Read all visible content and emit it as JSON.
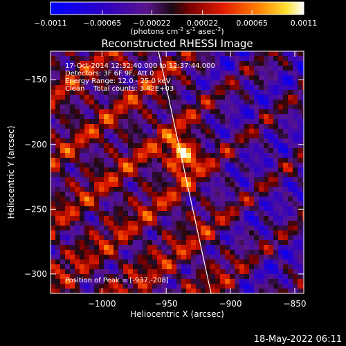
{
  "colorbar": {
    "ticks": [
      "-0.0011",
      "-0.00065",
      "-0.00022",
      "0.00022",
      "0.00065",
      "0.0011"
    ],
    "units_prefix": "(photons cm",
    "units_sup1": "-2",
    "units_mid": " s",
    "units_sup2": "-1",
    "units_mid2": " asec",
    "units_sup3": "-2",
    "units_suffix": ")"
  },
  "timestamp": "18-May-2022 06:11",
  "chart_data": {
    "type": "heatmap",
    "title": "Reconstructed RHESSI Image",
    "xlabel": "Heliocentric X (arcsec)",
    "ylabel": "Heliocentric Y (arcsec)",
    "xlim": [
      -1040,
      -843
    ],
    "ylim": [
      -315,
      -128
    ],
    "xticks": [
      -1000,
      -950,
      -900,
      -850
    ],
    "xtick_labels": [
      "−1000",
      "−950",
      "−900",
      "−850"
    ],
    "yticks": [
      -150,
      -200,
      -250,
      -300
    ],
    "ytick_labels": [
      "−150",
      "−200",
      "−250",
      "−300"
    ],
    "value_range": [
      -0.0011,
      0.0011
    ],
    "colormap": "hot-blue (black-blue-purple-red-orange-yellow-white)",
    "peak": [
      -937,
      -208
    ],
    "annotations": [
      "17-Oct-2014 12:32:40.000 to 12:37:44.000",
      "Detectors: 3F 6F 9F, Att 0",
      "Energy Range: 12.0 - 25.0 keV",
      "Clean    Total counts: 3.42E+03"
    ],
    "peak_label": "Position of Peak = [-937,-208]",
    "limb_line": true
  }
}
